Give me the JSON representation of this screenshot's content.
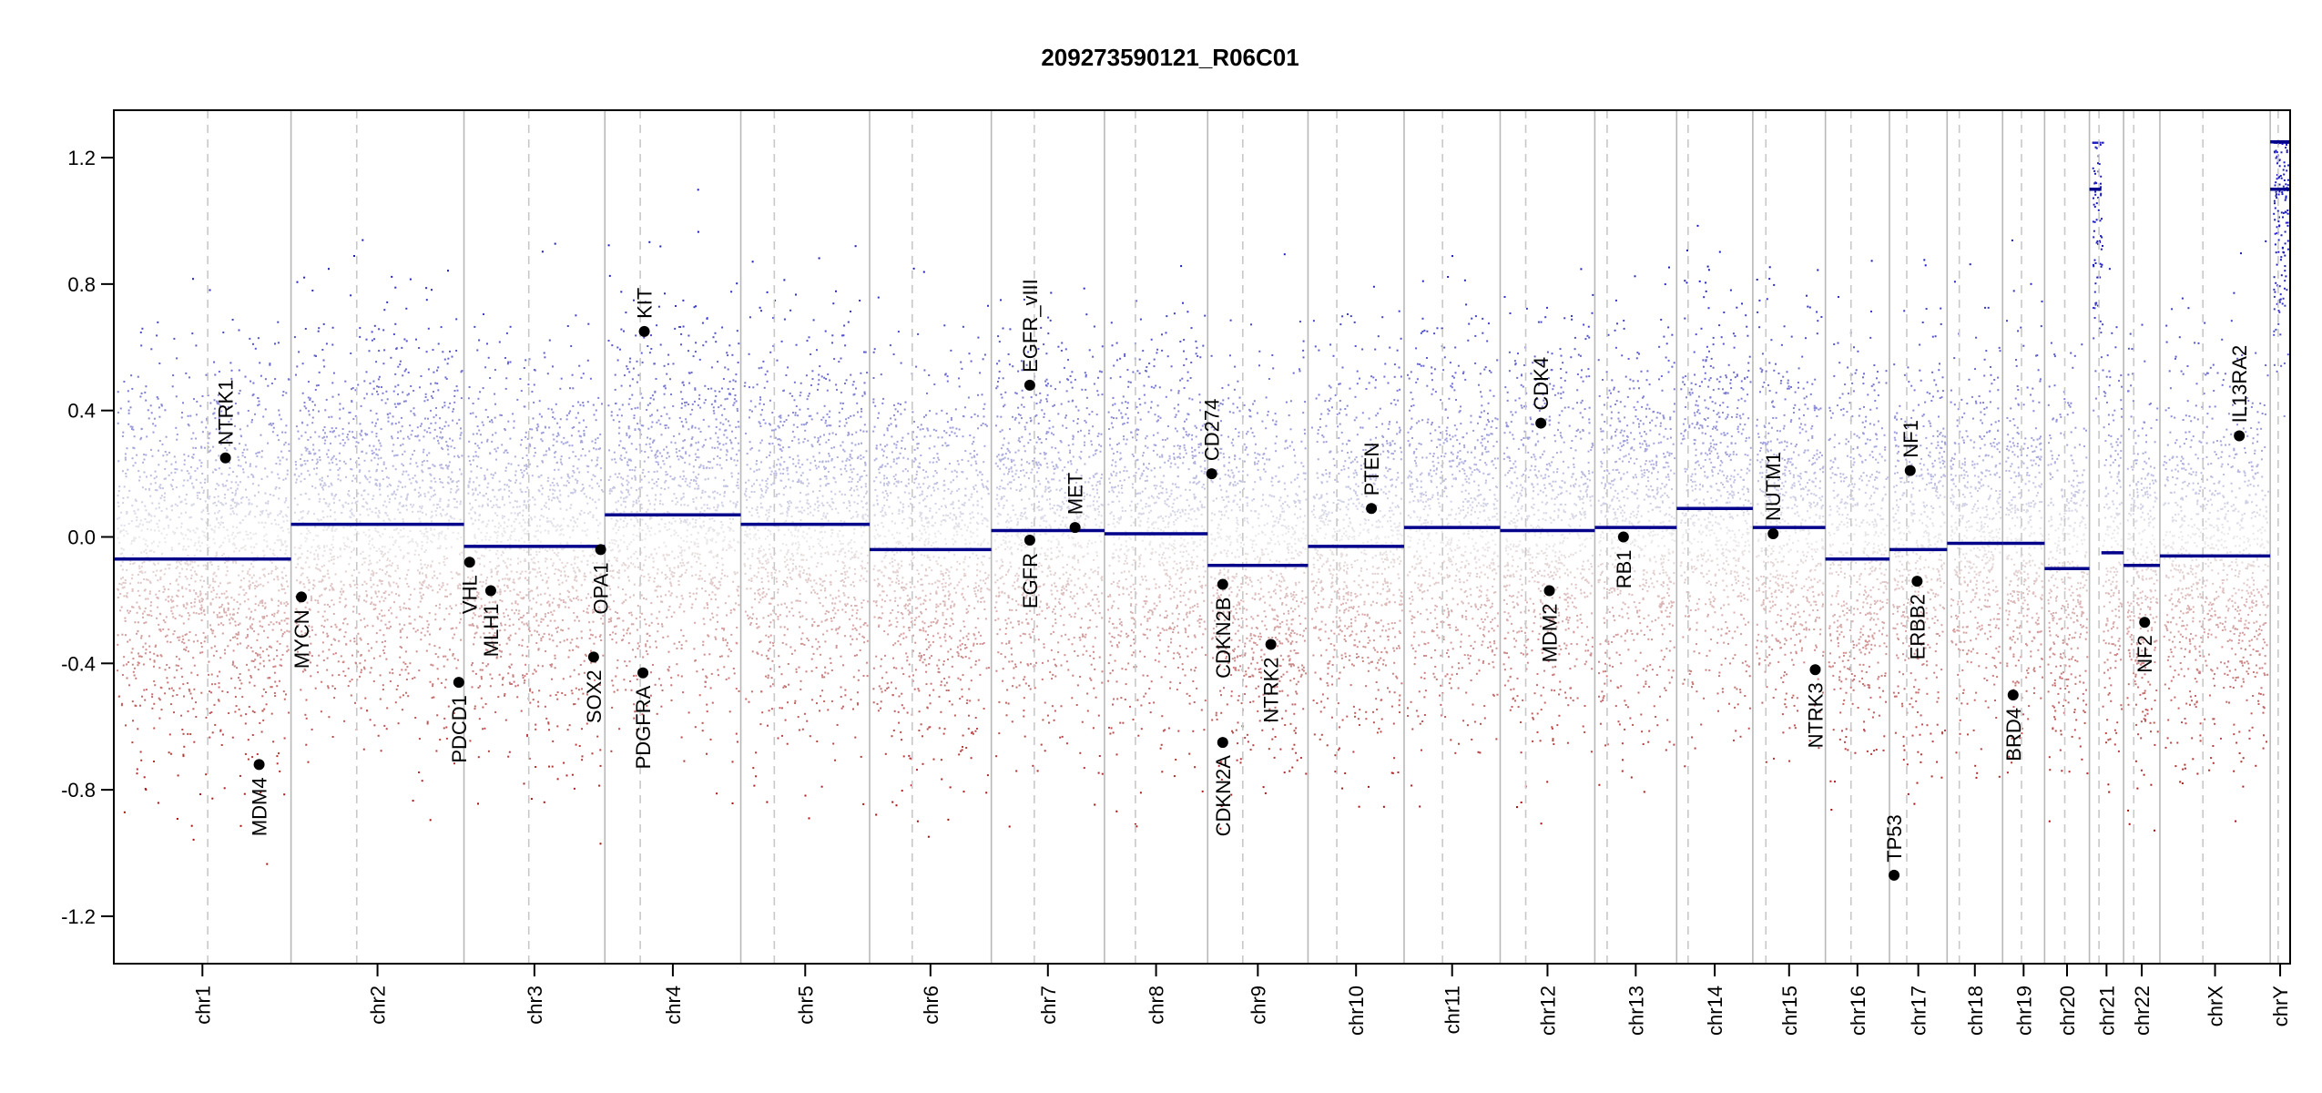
{
  "chart_data": {
    "type": "scatter",
    "title": "209273590121_R06C01",
    "xlabel": "",
    "ylabel": "",
    "ylim": [
      -1.35,
      1.35
    ],
    "y_ticks": [
      -1.2,
      -0.8,
      -0.4,
      0.0,
      0.4,
      0.8,
      1.2
    ],
    "y_tick_labels": [
      "-1.2",
      "-0.8",
      "-0.4",
      "0.0",
      "0.4",
      "0.8",
      "1.2"
    ],
    "chromosomes": [
      {
        "name": "chr1",
        "length": 249,
        "centromere": 0.53,
        "segments": [
          {
            "value": -0.07
          }
        ]
      },
      {
        "name": "chr2",
        "length": 243,
        "centromere": 0.38,
        "segments": [
          {
            "value": 0.04
          }
        ]
      },
      {
        "name": "chr3",
        "length": 198,
        "centromere": 0.46,
        "segments": [
          {
            "value": -0.03
          }
        ]
      },
      {
        "name": "chr4",
        "length": 191,
        "centromere": 0.26,
        "segments": [
          {
            "value": 0.07
          }
        ]
      },
      {
        "name": "chr5",
        "length": 181,
        "centromere": 0.26,
        "segments": [
          {
            "value": 0.04
          }
        ]
      },
      {
        "name": "chr6",
        "length": 171,
        "centromere": 0.35,
        "segments": [
          {
            "value": -0.04
          }
        ]
      },
      {
        "name": "chr7",
        "length": 159,
        "centromere": 0.38,
        "segments": [
          {
            "value": 0.02
          }
        ]
      },
      {
        "name": "chr8",
        "length": 145,
        "centromere": 0.3,
        "segments": [
          {
            "value": 0.01
          }
        ]
      },
      {
        "name": "chr9",
        "length": 141,
        "centromere": 0.35,
        "segments": [
          {
            "value": -0.09
          }
        ]
      },
      {
        "name": "chr10",
        "length": 135,
        "centromere": 0.3,
        "segments": [
          {
            "value": -0.03
          }
        ]
      },
      {
        "name": "chr11",
        "length": 135,
        "centromere": 0.4,
        "segments": [
          {
            "value": 0.03
          }
        ]
      },
      {
        "name": "chr12",
        "length": 133,
        "centromere": 0.27,
        "segments": [
          {
            "value": 0.02
          }
        ]
      },
      {
        "name": "chr13",
        "length": 115,
        "centromere": 0.15,
        "segments": [
          {
            "value": 0.03
          }
        ]
      },
      {
        "name": "chr14",
        "length": 107,
        "centromere": 0.15,
        "segments": [
          {
            "value": 0.09
          }
        ]
      },
      {
        "name": "chr15",
        "length": 102,
        "centromere": 0.18,
        "segments": [
          {
            "value": 0.03
          }
        ]
      },
      {
        "name": "chr16",
        "length": 90,
        "centromere": 0.4,
        "segments": [
          {
            "value": -0.07
          }
        ]
      },
      {
        "name": "chr17",
        "length": 81,
        "centromere": 0.3,
        "segments": [
          {
            "value": -0.04
          }
        ]
      },
      {
        "name": "chr18",
        "length": 78,
        "centromere": 0.22,
        "segments": [
          {
            "value": -0.02
          }
        ]
      },
      {
        "name": "chr19",
        "length": 59,
        "centromere": 0.45,
        "segments": [
          {
            "value": -0.02
          }
        ]
      },
      {
        "name": "chr20",
        "length": 63,
        "centromere": 0.45,
        "segments": [
          {
            "value": -0.1
          }
        ]
      },
      {
        "name": "chr21",
        "length": 48,
        "centromere": 0.28,
        "segments": [
          {
            "value": 1.1,
            "start": 0.0,
            "end": 0.35
          },
          {
            "value": -0.05,
            "start": 0.35,
            "end": 1.0
          }
        ]
      },
      {
        "name": "chr22",
        "length": 51,
        "centromere": 0.28,
        "segments": [
          {
            "value": -0.09
          }
        ]
      },
      {
        "name": "chrX",
        "length": 155,
        "centromere": 0.39,
        "segments": [
          {
            "value": -0.06
          }
        ]
      },
      {
        "name": "chrY",
        "length": 28,
        "centromere": 0.4,
        "segments": [
          {
            "value": 1.25
          },
          {
            "value": 1.1
          }
        ]
      }
    ],
    "genes": [
      {
        "name": "NTRK1",
        "chrom": "chr1",
        "pos": 0.63,
        "value": 0.25,
        "label_side": "above"
      },
      {
        "name": "MDM4",
        "chrom": "chr1",
        "pos": 0.82,
        "value": -0.72,
        "label_side": "below"
      },
      {
        "name": "MYCN",
        "chrom": "chr2",
        "pos": 0.06,
        "value": -0.19,
        "label_side": "below"
      },
      {
        "name": "PDCD1",
        "chrom": "chr2",
        "pos": 0.97,
        "value": -0.46,
        "label_side": "below"
      },
      {
        "name": "VHL",
        "chrom": "chr3",
        "pos": 0.04,
        "value": -0.08,
        "label_side": "below"
      },
      {
        "name": "MLH1",
        "chrom": "chr3",
        "pos": 0.19,
        "value": -0.17,
        "label_side": "below"
      },
      {
        "name": "SOX2",
        "chrom": "chr3",
        "pos": 0.92,
        "value": -0.38,
        "label_side": "below"
      },
      {
        "name": "OPA1",
        "chrom": "chr3",
        "pos": 0.97,
        "value": -0.04,
        "label_side": "below"
      },
      {
        "name": "KIT",
        "chrom": "chr4",
        "pos": 0.29,
        "value": 0.65,
        "label_side": "above"
      },
      {
        "name": "PDGFRA",
        "chrom": "chr4",
        "pos": 0.28,
        "value": -0.43,
        "label_side": "below"
      },
      {
        "name": "EGFR_vIII",
        "chrom": "chr7",
        "pos": 0.34,
        "value": 0.48,
        "label_side": "above"
      },
      {
        "name": "EGFR",
        "chrom": "chr7",
        "pos": 0.34,
        "value": -0.01,
        "label_side": "below"
      },
      {
        "name": "MET",
        "chrom": "chr7",
        "pos": 0.74,
        "value": 0.03,
        "label_side": "above"
      },
      {
        "name": "CD274",
        "chrom": "chr9",
        "pos": 0.04,
        "value": 0.2,
        "label_side": "above"
      },
      {
        "name": "CDKN2B",
        "chrom": "chr9",
        "pos": 0.15,
        "value": -0.15,
        "label_side": "below"
      },
      {
        "name": "CDKN2A",
        "chrom": "chr9",
        "pos": 0.15,
        "value": -0.65,
        "label_side": "below"
      },
      {
        "name": "NTRK2",
        "chrom": "chr9",
        "pos": 0.63,
        "value": -0.34,
        "label_side": "below"
      },
      {
        "name": "PTEN",
        "chrom": "chr10",
        "pos": 0.66,
        "value": 0.09,
        "label_side": "above"
      },
      {
        "name": "CDK4",
        "chrom": "chr12",
        "pos": 0.43,
        "value": 0.36,
        "label_side": "above"
      },
      {
        "name": "MDM2",
        "chrom": "chr12",
        "pos": 0.52,
        "value": -0.17,
        "label_side": "below"
      },
      {
        "name": "RB1",
        "chrom": "chr13",
        "pos": 0.35,
        "value": 0.0,
        "label_side": "below"
      },
      {
        "name": "NUTM1",
        "chrom": "chr15",
        "pos": 0.28,
        "value": 0.01,
        "label_side": "above"
      },
      {
        "name": "NTRK3",
        "chrom": "chr15",
        "pos": 0.86,
        "value": -0.42,
        "label_side": "below"
      },
      {
        "name": "TP53",
        "chrom": "chr17",
        "pos": 0.08,
        "value": -1.07,
        "label_side": "above"
      },
      {
        "name": "NF1",
        "chrom": "chr17",
        "pos": 0.36,
        "value": 0.21,
        "label_side": "above"
      },
      {
        "name": "ERBB2",
        "chrom": "chr17",
        "pos": 0.48,
        "value": -0.14,
        "label_side": "below"
      },
      {
        "name": "BRD4",
        "chrom": "chr19",
        "pos": 0.25,
        "value": -0.5,
        "label_side": "below"
      },
      {
        "name": "NF2",
        "chrom": "chr22",
        "pos": 0.58,
        "value": -0.27,
        "label_side": "below"
      },
      {
        "name": "IL13RA2",
        "chrom": "chrX",
        "pos": 0.72,
        "value": 0.32,
        "label_side": "above"
      }
    ],
    "colors": {
      "gain": "#1d1dbf",
      "loss": "#a81010",
      "segment": "#00008b",
      "boundary": "#b8b8b8",
      "centromere": "#c8c8c8",
      "gene_marker": "#000000"
    }
  }
}
